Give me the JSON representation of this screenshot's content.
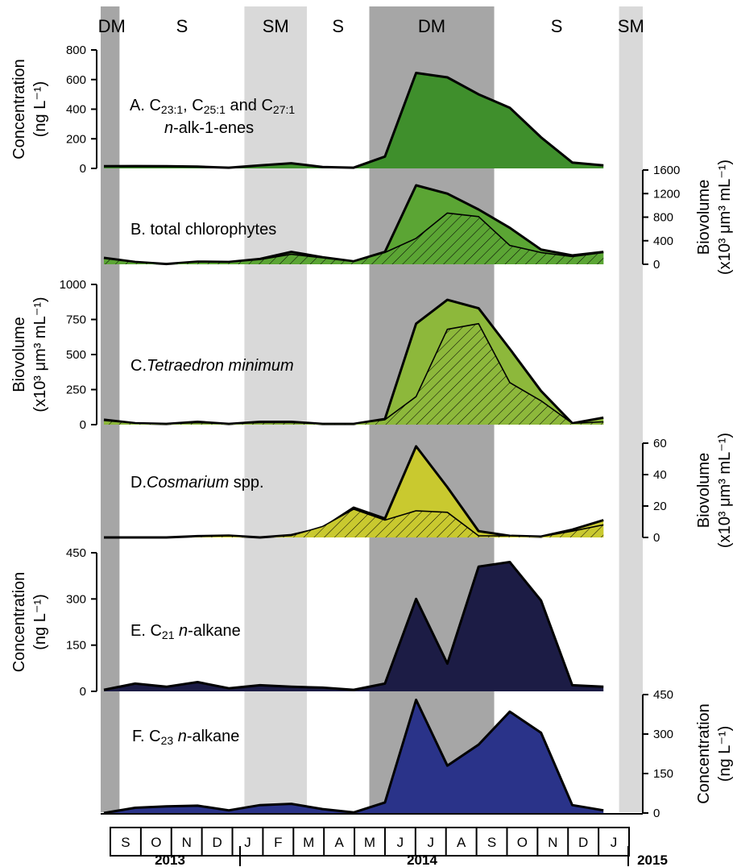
{
  "figure": {
    "season_bands": [
      {
        "label": "DM",
        "from": 0,
        "to": 0.5,
        "color": "#a6a6a6"
      },
      {
        "label": "S",
        "from": 0.5,
        "to": 4.5,
        "color": null
      },
      {
        "label": "SM",
        "from": 4.5,
        "to": 6.5,
        "color": "#d9d9d9"
      },
      {
        "label": "S",
        "from": 6.5,
        "to": 8.5,
        "color": null
      },
      {
        "label": "DM",
        "from": 8.5,
        "to": 12.5,
        "color": "#a6a6a6"
      },
      {
        "label": "S",
        "from": 12.5,
        "to": 16.5,
        "color": null
      },
      {
        "label": "SM",
        "from": 16.5,
        "to": 17.5,
        "color": "#d9d9d9"
      }
    ],
    "months": [
      "S",
      "O",
      "N",
      "D",
      "J",
      "F",
      "M",
      "A",
      "M",
      "J",
      "J",
      "A",
      "S",
      "O",
      "N",
      "D",
      "J"
    ],
    "years": [
      {
        "label": "2013",
        "from": 0,
        "to": 4
      },
      {
        "label": "2014",
        "from": 4,
        "to": 16
      },
      {
        "label": "2015",
        "from": 16,
        "to": 17
      }
    ]
  },
  "chart_data": [
    {
      "type": "area",
      "panel": "A",
      "title_html": "A. C<tspan font-size='14' dy='4'>23:1</tspan><tspan dy='-4'>, C</tspan><tspan font-size='14' dy='4'>25:1</tspan><tspan dy='-4'> and C</tspan><tspan font-size='14' dy='4'>27:1</tspan>",
      "title_line2_html": "<tspan font-style='italic'>n</tspan>-alk-1-enes",
      "axis_side": "left",
      "ylabel": [
        "Concentration",
        "(ng L⁻¹)"
      ],
      "ylim": [
        0,
        800
      ],
      "yticks": [
        0,
        200,
        400,
        600,
        800
      ],
      "x": [
        0,
        1,
        2,
        3,
        4,
        5,
        6,
        7,
        8,
        9,
        10,
        11,
        12,
        13,
        14,
        15,
        16,
        17
      ],
      "series": [
        {
          "values": [
            15,
            16,
            15,
            12,
            5,
            20,
            35,
            10,
            5,
            80,
            645,
            615,
            500,
            410,
            210,
            40,
            20,
            null
          ],
          "fill": "#3f8f2c",
          "hatch": false
        }
      ]
    },
    {
      "type": "area",
      "panel": "B",
      "title_html": "B. total chlorophytes",
      "axis_side": "right",
      "ylabel": [
        "Biovolume",
        "(x10³ μm³ mL⁻¹)"
      ],
      "ylim": [
        0,
        1600
      ],
      "yticks": [
        0,
        400,
        800,
        1200,
        1600
      ],
      "x": [
        0,
        1,
        2,
        3,
        4,
        5,
        6,
        7,
        8,
        9,
        10,
        11,
        12,
        13,
        14,
        15,
        16,
        17
      ],
      "series": [
        {
          "values": [
            110,
            40,
            5,
            45,
            40,
            90,
            210,
            120,
            50,
            210,
            1340,
            1200,
            930,
            620,
            250,
            150,
            210,
            null
          ],
          "fill": "#5ba534",
          "hatch": false
        },
        {
          "values": [
            100,
            35,
            5,
            40,
            35,
            80,
            170,
            110,
            45,
            200,
            440,
            870,
            810,
            320,
            200,
            130,
            200,
            null
          ],
          "fill": "#5ba534",
          "hatch": true
        }
      ]
    },
    {
      "type": "area",
      "panel": "C",
      "title_html": "C.<tspan font-style='italic'>Tetraedron minimum</tspan>",
      "axis_side": "left",
      "ylabel": [
        "Biovolume",
        "(x10³ μm³ mL⁻¹)"
      ],
      "ylim": [
        0,
        1000
      ],
      "yticks": [
        0,
        250,
        500,
        750,
        1000
      ],
      "x": [
        0,
        1,
        2,
        3,
        4,
        5,
        6,
        7,
        8,
        9,
        10,
        11,
        12,
        13,
        14,
        15,
        16,
        17
      ],
      "series": [
        {
          "values": [
            35,
            10,
            5,
            20,
            5,
            20,
            20,
            5,
            5,
            40,
            720,
            890,
            830,
            540,
            240,
            10,
            50,
            null
          ],
          "fill": "#8db83b",
          "hatch": false
        },
        {
          "values": [
            30,
            10,
            5,
            15,
            5,
            15,
            15,
            5,
            5,
            35,
            200,
            680,
            720,
            300,
            170,
            10,
            20,
            null
          ],
          "fill": "#8db83b",
          "hatch": true
        }
      ]
    },
    {
      "type": "area",
      "panel": "D",
      "title_html": "D.<tspan font-style='italic'>Cosmarium</tspan> spp.",
      "axis_side": "right",
      "ylabel": [
        "Biovolume",
        "(x10³ μm³ mL⁻¹)"
      ],
      "ylim": [
        0,
        60
      ],
      "yticks": [
        0,
        20,
        40,
        60
      ],
      "x": [
        0,
        1,
        2,
        3,
        4,
        5,
        6,
        7,
        8,
        9,
        10,
        11,
        12,
        13,
        14,
        15,
        16,
        17
      ],
      "series": [
        {
          "values": [
            0,
            0,
            0,
            0.8,
            1.2,
            0,
            1.5,
            6,
            19,
            12,
            58,
            32,
            4,
            1,
            0.5,
            5,
            11,
            null
          ],
          "fill": "#c9c92f",
          "hatch": false
        },
        {
          "values": [
            0,
            0,
            0,
            0.6,
            1,
            0,
            1.2,
            7,
            18,
            11,
            17,
            16,
            1,
            1,
            0.5,
            4,
            8,
            null
          ],
          "fill": "#c9c92f",
          "hatch": true
        }
      ]
    },
    {
      "type": "area",
      "panel": "E",
      "title_html": "E. C<tspan font-size='14' dy='4'>21</tspan><tspan dy='-4'> </tspan><tspan font-style='italic'>n</tspan>-alkane",
      "axis_side": "left",
      "ylabel": [
        "Concentration",
        "(ng L⁻¹)"
      ],
      "ylim": [
        0,
        450
      ],
      "yticks": [
        0,
        150,
        300,
        450
      ],
      "x": [
        0,
        1,
        2,
        3,
        4,
        5,
        6,
        7,
        8,
        9,
        10,
        11,
        12,
        13,
        14,
        15,
        16,
        17
      ],
      "series": [
        {
          "values": [
            5,
            25,
            15,
            30,
            10,
            20,
            15,
            12,
            5,
            25,
            300,
            90,
            405,
            420,
            295,
            20,
            15,
            null
          ],
          "fill": "#1c1c45",
          "hatch": false
        }
      ]
    },
    {
      "type": "area",
      "panel": "F",
      "title_html": "F. C<tspan font-size='14' dy='4'>23</tspan><tspan dy='-4'> </tspan><tspan font-style='italic'>n</tspan>-alkane",
      "axis_side": "right",
      "ylabel": [
        "Concentration",
        "(ng L⁻¹)"
      ],
      "ylim": [
        0,
        450
      ],
      "yticks": [
        0,
        150,
        300,
        450
      ],
      "x": [
        0,
        1,
        2,
        3,
        4,
        5,
        6,
        7,
        8,
        9,
        10,
        11,
        12,
        13,
        14,
        15,
        16,
        17
      ],
      "series": [
        {
          "values": [
            0,
            20,
            25,
            28,
            10,
            30,
            35,
            15,
            2,
            40,
            430,
            180,
            260,
            385,
            305,
            30,
            10,
            null
          ],
          "fill": "#2a3389",
          "hatch": false
        }
      ]
    }
  ]
}
